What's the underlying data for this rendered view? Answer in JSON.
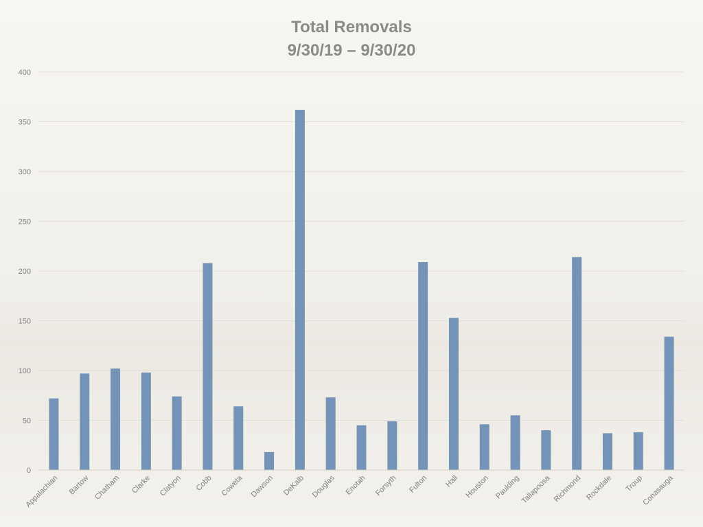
{
  "chart_data": {
    "type": "bar",
    "title": "Total Removals",
    "subtitle": "9/30/19 – 9/30/20",
    "xlabel": "",
    "ylabel": "",
    "ylim": [
      0,
      400
    ],
    "yticks": [
      "0",
      "50",
      "100",
      "150",
      "200",
      "250",
      "300",
      "350",
      "400"
    ],
    "grid": true,
    "legend": "none",
    "bar_color": "#7393b7",
    "categories": [
      "Appalachian",
      "Bartow",
      "Chatham",
      "Clarke",
      "Clatyon",
      "Cobb",
      "Coweta",
      "Dawson",
      "DeKalb",
      "Douglas",
      "Enotah",
      "Forsyth",
      "Fulton",
      "Hall",
      "Houston",
      "Paulding",
      "Tallapoosa",
      "Richmond",
      "Rockdale",
      "Troup",
      "Conasauga"
    ],
    "values": [
      72,
      97,
      102,
      98,
      74,
      208,
      64,
      18,
      362,
      73,
      45,
      49,
      209,
      153,
      46,
      55,
      40,
      214,
      37,
      38,
      134
    ]
  }
}
